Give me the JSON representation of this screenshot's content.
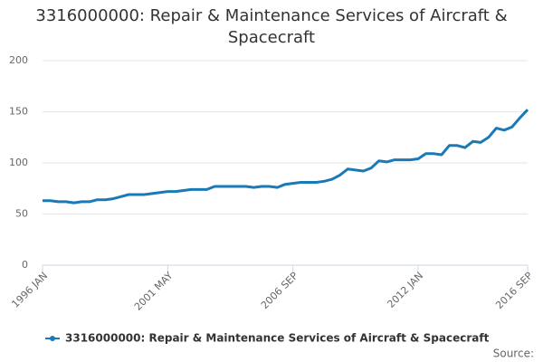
{
  "chart_data": {
    "type": "line",
    "title": "3316000000: Repair & Maintenance Services of Aircraft & Spacecraft",
    "source": "Source:",
    "categories": [
      "1996 JAN",
      null,
      null,
      null,
      null,
      null,
      null,
      null,
      null,
      null,
      null,
      null,
      null,
      null,
      null,
      null,
      "2001 MAY",
      null,
      null,
      null,
      null,
      null,
      null,
      null,
      null,
      null,
      null,
      null,
      null,
      null,
      null,
      null,
      "2006 SEP",
      null,
      null,
      null,
      null,
      null,
      null,
      null,
      null,
      null,
      null,
      null,
      null,
      null,
      null,
      null,
      "2012 JAN",
      null,
      null,
      null,
      null,
      null,
      null,
      null,
      null,
      null,
      null,
      null,
      null,
      null,
      "2016 SEP"
    ],
    "series": [
      {
        "name": "3316000000: Repair & Maintenance Services of Aircraft & Spacecraft",
        "color": "#1a7ab8",
        "values": [
          63,
          63,
          62,
          62,
          61,
          62,
          62,
          64,
          64,
          65,
          67,
          69,
          69,
          69,
          70,
          71,
          72,
          72,
          73,
          74,
          74,
          74,
          77,
          77,
          77,
          77,
          77,
          76,
          77,
          77,
          76,
          79,
          80,
          81,
          81,
          81,
          82,
          84,
          88,
          94,
          93,
          92,
          95,
          102,
          101,
          103,
          103,
          103,
          104,
          109,
          109,
          108,
          117,
          117,
          115,
          121,
          120,
          125,
          134,
          132,
          135,
          144,
          152
        ]
      }
    ],
    "ylim": [
      0,
      200
    ],
    "yticks": [
      0,
      50,
      100,
      150,
      200
    ],
    "grid": true
  }
}
